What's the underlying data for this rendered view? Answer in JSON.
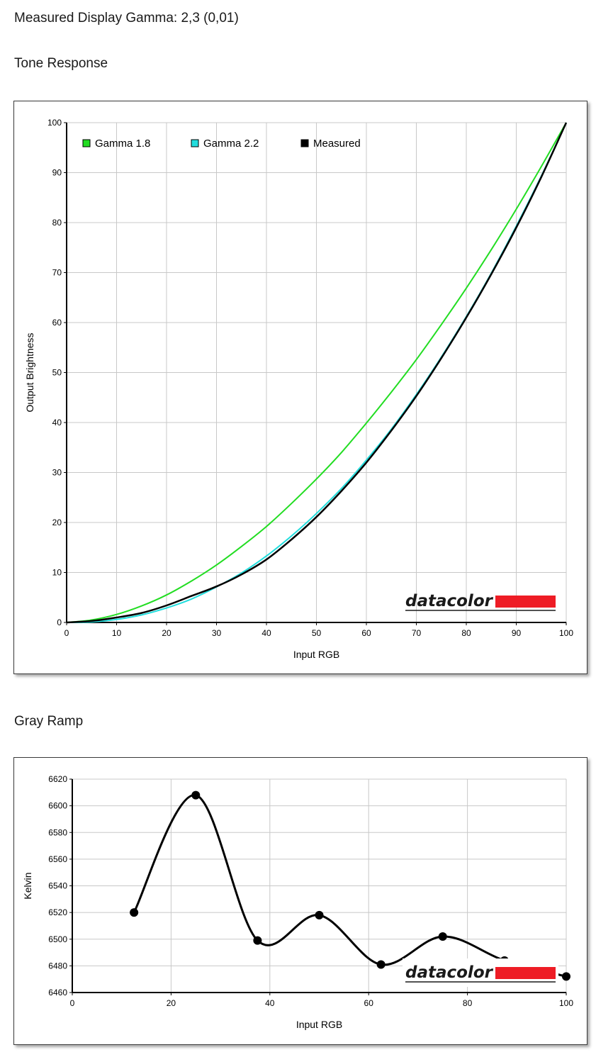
{
  "header": {
    "measured_gamma": "Measured Display Gamma: 2,3 (0,01)",
    "tone_title": "Tone Response",
    "gray_title": "Gray Ramp"
  },
  "brand": {
    "logo_text": "datacolor",
    "logo_bar_color": "#ee1c25"
  },
  "chart_data": [
    {
      "type": "line",
      "title": "Tone Response",
      "xlabel": "Input RGB",
      "ylabel": "Output Brightness",
      "xlim": [
        0,
        100
      ],
      "ylim": [
        0,
        100
      ],
      "x_ticks": [
        0,
        10,
        20,
        30,
        40,
        50,
        60,
        70,
        80,
        90,
        100
      ],
      "y_ticks": [
        0,
        10,
        20,
        30,
        40,
        50,
        60,
        70,
        80,
        90,
        100
      ],
      "grid": true,
      "legend_position": "top-left",
      "series": [
        {
          "name": "Gamma 1.8",
          "color": "#22dd22",
          "x": [
            0,
            5,
            10,
            15,
            20,
            25,
            30,
            35,
            40,
            45,
            50,
            55,
            60,
            65,
            70,
            75,
            80,
            85,
            90,
            95,
            100
          ],
          "y": [
            0,
            0.5,
            1.6,
            3.3,
            5.5,
            8.3,
            11.5,
            15.2,
            19.2,
            23.8,
            28.7,
            34.0,
            39.9,
            46.1,
            52.6,
            59.6,
            66.9,
            74.6,
            82.7,
            91.2,
            100
          ]
        },
        {
          "name": "Gamma 2.2",
          "color": "#22dddd",
          "x": [
            0,
            5,
            10,
            15,
            20,
            25,
            30,
            35,
            40,
            45,
            50,
            55,
            60,
            65,
            70,
            75,
            80,
            85,
            90,
            95,
            100
          ],
          "y": [
            0,
            0.1,
            0.6,
            1.5,
            2.9,
            4.7,
            7.1,
            9.9,
            13.3,
            17.3,
            21.8,
            26.8,
            32.5,
            38.7,
            45.6,
            53.1,
            61.2,
            69.9,
            79.3,
            89.3,
            100
          ]
        },
        {
          "name": "Measured",
          "color": "#000000",
          "x": [
            0,
            5,
            10,
            15,
            20,
            25,
            30,
            35,
            40,
            45,
            50,
            55,
            60,
            65,
            70,
            75,
            80,
            85,
            90,
            95,
            100
          ],
          "y": [
            0,
            0.3,
            1.0,
            1.9,
            3.4,
            5.3,
            7.2,
            9.6,
            12.6,
            16.6,
            21.1,
            26.3,
            32.0,
            38.4,
            45.3,
            52.9,
            61.0,
            69.7,
            79.0,
            89.1,
            100
          ]
        }
      ]
    },
    {
      "type": "line",
      "title": "Gray Ramp",
      "xlabel": "Input RGB",
      "ylabel": "Kelvin",
      "xlim": [
        0,
        100
      ],
      "ylim": [
        6460,
        6620
      ],
      "x_ticks": [
        0,
        20,
        40,
        60,
        80,
        100
      ],
      "y_ticks": [
        6460,
        6480,
        6500,
        6520,
        6540,
        6560,
        6580,
        6600,
        6620
      ],
      "grid": true,
      "series": [
        {
          "color": "#000000",
          "x": [
            12.5,
            25,
            37.5,
            50,
            62.5,
            75,
            87.5,
            100
          ],
          "y": [
            6520,
            6608,
            6499,
            6518,
            6481,
            6502,
            6484,
            6472
          ]
        }
      ]
    }
  ]
}
